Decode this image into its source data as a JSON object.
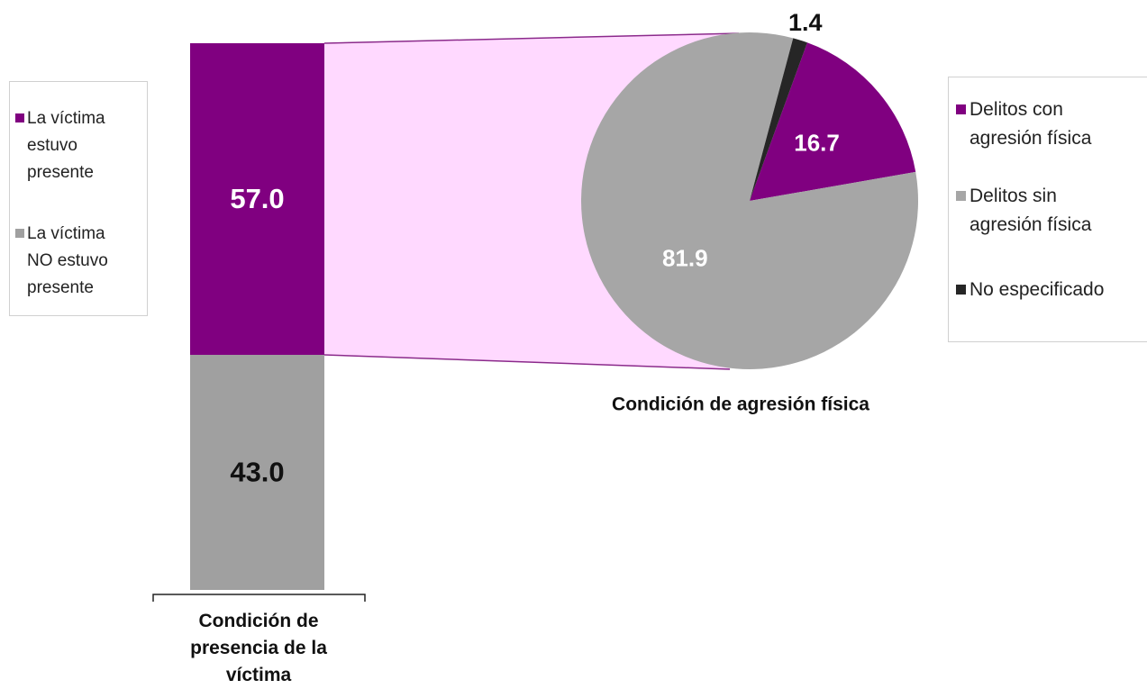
{
  "chart_data": [
    {
      "type": "bar",
      "stacked": true,
      "categories": [
        "Condición de presencia de la víctima"
      ],
      "series": [
        {
          "name": "La víctima estuvo presente",
          "color": "#800080",
          "values": [
            57
          ],
          "value_labels": [
            "57.0"
          ]
        },
        {
          "name": "La víctima NO estuvo presente",
          "color": "#a0a0a0",
          "values": [
            43
          ],
          "value_labels": [
            "43.0"
          ]
        }
      ],
      "ylim": [
        0,
        100
      ]
    },
    {
      "type": "pie",
      "title": "Condición de agresión física",
      "categories": [
        "Delitos con agresión física",
        "Delitos sin agresión física",
        "No especificado"
      ],
      "values": [
        16.7,
        81.9,
        1.4
      ],
      "colors": [
        "#800080",
        "#a6a6a6",
        "#262626"
      ]
    }
  ]
}
